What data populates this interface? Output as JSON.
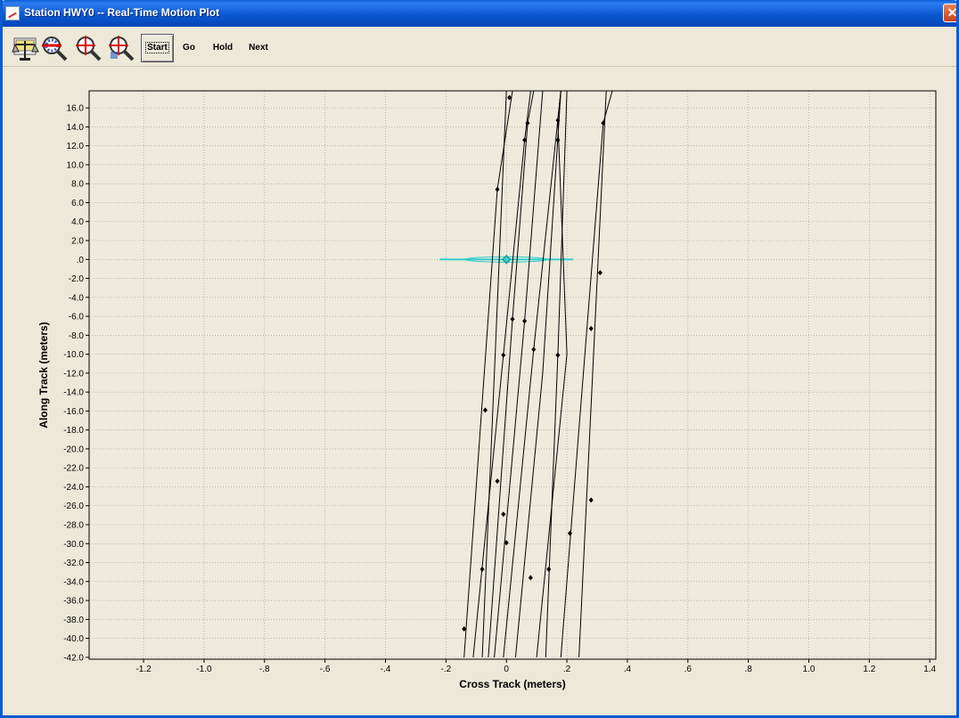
{
  "window": {
    "title": "Station HWY0 -- Real-Time Motion Plot",
    "close_glyph": "✕"
  },
  "toolbar": {
    "icons": [
      "scale-icon",
      "zoom-out-icon",
      "zoom-crosshair-icon",
      "zoom-in-icon"
    ],
    "start_label": "Start",
    "go_label": "Go",
    "hold_label": "Hold",
    "next_label": "Next"
  },
  "colors": {
    "plot_background": "#eeebdc",
    "grid": "#9a9a9a",
    "track_line": "#000000",
    "station_marker": "#33cccc"
  },
  "chart_data": {
    "type": "line",
    "xlabel": "Cross Track (meters)",
    "ylabel": "Along Track (meters)",
    "xlim": [
      -1.38,
      1.42
    ],
    "ylim": [
      -42.2,
      17.8
    ],
    "x_ticks": [
      -1.2,
      -1.0,
      -0.8,
      -0.6,
      -0.4,
      -0.2,
      0,
      0.2,
      0.4,
      0.6,
      0.8,
      1.0,
      1.2,
      1.4
    ],
    "x_tick_labels": [
      "-1.2",
      "-1.0",
      "-.8",
      "-.6",
      "-.4",
      "-.2",
      "0",
      ".2",
      ".4",
      ".6",
      ".8",
      "1.0",
      "1.2",
      "1.4"
    ],
    "y_ticks": [
      16,
      14,
      12,
      10,
      8,
      6,
      4,
      2,
      0,
      -2,
      -4,
      -6,
      -8,
      -10,
      -12,
      -14,
      -16,
      -18,
      -20,
      -22,
      -24,
      -26,
      -28,
      -30,
      -32,
      -34,
      -36,
      -38,
      -40,
      -42
    ],
    "y_tick_labels": [
      "16.0",
      "14.0",
      "12.0",
      "10.0",
      "8.0",
      "6.0",
      "4.0",
      "2.0",
      ".0",
      "-2.0",
      "-4.0",
      "-6.0",
      "-8.0",
      "-10.0",
      "-12.0",
      "-14.0",
      "-16.0",
      "-18.0",
      "-20.0",
      "-22.0",
      "-24.0",
      "-26.0",
      "-28.0",
      "-30.0",
      "-32.0",
      "-34.0",
      "-36.0",
      "-38.0",
      "-40.0",
      "-42.0"
    ],
    "grid": true,
    "series": [
      {
        "points": [
          [
            -0.14,
            -42
          ],
          [
            -0.03,
            7.4
          ],
          [
            0.02,
            17.8
          ]
        ],
        "markers": [
          [
            -0.14,
            -39
          ],
          [
            -0.03,
            7.4
          ]
        ]
      },
      {
        "points": [
          [
            -0.11,
            -42
          ],
          [
            -0.01,
            -10.1
          ],
          [
            0.06,
            12.6
          ],
          [
            0.08,
            17.8
          ]
        ],
        "markers": [
          [
            -0.07,
            -15.9
          ],
          [
            -0.01,
            -10.1
          ],
          [
            0.06,
            12.6
          ]
        ]
      },
      {
        "points": [
          [
            -0.08,
            -42
          ],
          [
            0.0,
            17.8
          ]
        ],
        "markers": [
          [
            -0.08,
            -32.7
          ],
          [
            0.01,
            17.1
          ]
        ]
      },
      {
        "points": [
          [
            -0.06,
            -42
          ],
          [
            0.02,
            -6.3
          ],
          [
            0.07,
            14.4
          ],
          [
            0.09,
            17.8
          ]
        ],
        "markers": [
          [
            -0.03,
            -23.4
          ],
          [
            0.02,
            -6.3
          ],
          [
            0.07,
            14.4
          ]
        ]
      },
      {
        "points": [
          [
            -0.04,
            -42
          ],
          [
            0.06,
            -6.5
          ],
          [
            0.12,
            17.8
          ]
        ],
        "markers": [
          [
            -0.01,
            -26.9
          ],
          [
            0.06,
            -6.5
          ]
        ]
      },
      {
        "points": [
          [
            -0.01,
            -42
          ],
          [
            0.09,
            -9.5
          ],
          [
            0.18,
            17.8
          ]
        ],
        "markers": [
          [
            0.0,
            -29.9
          ],
          [
            0.09,
            -9.5
          ]
        ]
      },
      {
        "points": [
          [
            0.03,
            -42
          ],
          [
            0.12,
            -12
          ],
          [
            0.18,
            17.8
          ]
        ],
        "markers": [
          [
            0.08,
            -33.6
          ]
        ]
      },
      {
        "points": [
          [
            0.1,
            -42
          ],
          [
            0.2,
            -10
          ],
          [
            0.17,
            14.7
          ],
          [
            0.18,
            17.8
          ]
        ],
        "markers": [
          [
            0.17,
            14.7
          ]
        ]
      },
      {
        "points": [
          [
            0.13,
            -42
          ],
          [
            0.17,
            -10.1
          ],
          [
            0.2,
            17.8
          ]
        ],
        "markers": [
          [
            0.14,
            -32.7
          ],
          [
            0.17,
            -10.1
          ],
          [
            0.17,
            12.6
          ]
        ]
      },
      {
        "points": [
          [
            0.18,
            -42
          ],
          [
            0.32,
            14.4
          ],
          [
            0.35,
            17.8
          ]
        ],
        "markers": [
          [
            0.21,
            -28.9
          ],
          [
            0.28,
            -7.3
          ],
          [
            0.32,
            14.4
          ]
        ]
      },
      {
        "points": [
          [
            0.24,
            -42
          ],
          [
            0.33,
            17.8
          ]
        ],
        "markers": [
          [
            0.28,
            -25.4
          ],
          [
            0.31,
            -1.4
          ]
        ]
      }
    ],
    "station_marker": {
      "x": 0.0,
      "y": 0.0,
      "spread": [
        -0.22,
        0.22
      ]
    }
  }
}
